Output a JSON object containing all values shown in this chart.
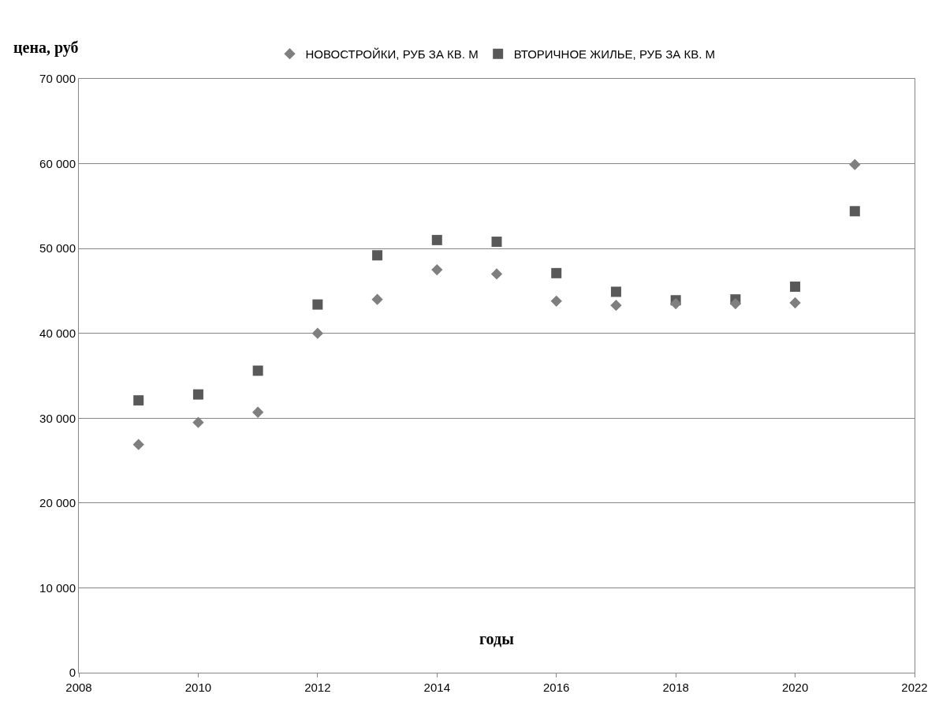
{
  "chart_data": {
    "type": "scatter",
    "ylabel": "цена, руб",
    "xlabel": "годы",
    "x": [
      2009,
      2010,
      2011,
      2012,
      2013,
      2014,
      2015,
      2016,
      2017,
      2018,
      2019,
      2020,
      2021
    ],
    "series": [
      {
        "name": "НОВОСТРОЙКИ, РУБ ЗА КВ. М",
        "color": "#7f7f7f",
        "marker": "diamond",
        "values": [
          26900,
          29500,
          30700,
          40000,
          44000,
          47500,
          47000,
          43800,
          43300,
          43500,
          43500,
          43600,
          59900
        ]
      },
      {
        "name": "ВТОРИЧНОЕ ЖИЛЬЕ, РУБ ЗА КВ. М",
        "color": "#595959",
        "marker": "square",
        "values": [
          32100,
          32800,
          35600,
          43400,
          49200,
          51000,
          50800,
          47100,
          44900,
          43900,
          44000,
          45500,
          54400
        ]
      }
    ],
    "xlim": [
      2008,
      2022
    ],
    "xticks": [
      2008,
      2010,
      2012,
      2014,
      2016,
      2018,
      2020,
      2022
    ],
    "ylim": [
      0,
      70000
    ],
    "yticks": [
      0,
      {
        "value": 10000,
        "label": "10 000"
      },
      {
        "value": 20000,
        "label": "20 000"
      },
      {
        "value": 30000,
        "label": "30 000"
      },
      {
        "value": 40000,
        "label": "40 000"
      },
      {
        "value": 50000,
        "label": "50 000"
      },
      {
        "value": 60000,
        "label": "60 000"
      },
      {
        "value": 70000,
        "label": "70 000"
      }
    ],
    "grid": "y",
    "legend": "top"
  }
}
